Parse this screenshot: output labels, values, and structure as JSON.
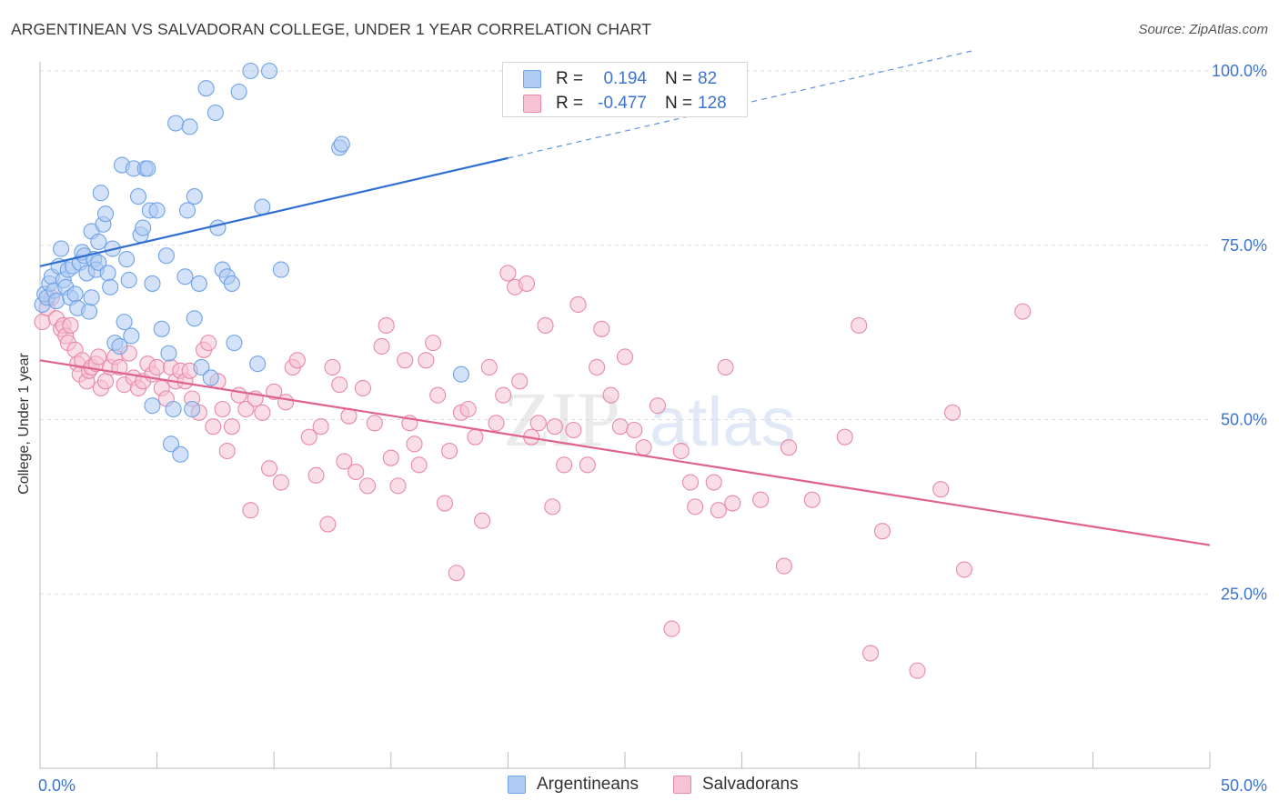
{
  "title": "ARGENTINEAN VS SALVADORAN COLLEGE, UNDER 1 YEAR CORRELATION CHART",
  "source": "Source: ZipAtlas.com",
  "colors": {
    "argentineans": "#6fa3e6",
    "argentineans_fill": "#aecbf2",
    "argentineans_line": "#2f6fd0",
    "salvadorans": "#e889a8",
    "salvadorans_fill": "#f6c3d4",
    "salvadorans_line": "#e0628e",
    "value_text": "#3b74d1",
    "grid": "#dddddd"
  },
  "legend": {
    "rows": [
      {
        "r_label": "R =",
        "r_value": "0.194",
        "n_label": "N =",
        "n_value": "82"
      },
      {
        "r_label": "R =",
        "r_value": "-0.477",
        "n_label": "N =",
        "n_value": "128"
      }
    ]
  },
  "chart_data": {
    "type": "scatter",
    "title": "ARGENTINEAN VS SALVADORAN COLLEGE, UNDER 1 YEAR CORRELATION CHART",
    "xlabel": "",
    "ylabel": "College, Under 1 year",
    "xlim": [
      0,
      50
    ],
    "ylim": [
      0,
      100
    ],
    "x_tick_labels": [
      "0.0%",
      "50.0%"
    ],
    "y_tick_labels": [
      "100.0%",
      "75.0%",
      "50.0%",
      "25.0%"
    ],
    "y_ticks": [
      100,
      75,
      50,
      25
    ],
    "grid": true,
    "legend_position": "top-center",
    "series": [
      {
        "name": "Argentineans",
        "r": 0.194,
        "n": 82,
        "trend": {
          "x0": 0,
          "y0": 72.0,
          "x1": 20,
          "y1": 87.5,
          "dashed_to_x": 40,
          "dashed_to_y": 103.0
        },
        "points": [
          [
            0.1,
            66.5
          ],
          [
            0.2,
            68.0
          ],
          [
            0.3,
            67.5
          ],
          [
            0.4,
            69.5
          ],
          [
            0.5,
            70.5
          ],
          [
            0.6,
            68.5
          ],
          [
            0.7,
            67.0
          ],
          [
            0.8,
            72.0
          ],
          [
            0.9,
            74.5
          ],
          [
            1.0,
            70.0
          ],
          [
            1.1,
            69.0
          ],
          [
            1.2,
            71.5
          ],
          [
            1.3,
            67.5
          ],
          [
            1.4,
            72.0
          ],
          [
            1.5,
            68.0
          ],
          [
            1.6,
            66.0
          ],
          [
            1.7,
            72.5
          ],
          [
            1.8,
            74.0
          ],
          [
            1.9,
            73.5
          ],
          [
            2.0,
            71.0
          ],
          [
            2.1,
            65.5
          ],
          [
            2.2,
            67.5
          ],
          [
            2.3,
            73.0
          ],
          [
            2.4,
            71.5
          ],
          [
            2.5,
            72.5
          ],
          [
            2.2,
            77.0
          ],
          [
            2.5,
            75.5
          ],
          [
            2.6,
            82.5
          ],
          [
            2.7,
            78.0
          ],
          [
            2.8,
            79.5
          ],
          [
            2.9,
            71.0
          ],
          [
            3.0,
            69.0
          ],
          [
            3.1,
            74.5
          ],
          [
            3.2,
            61.0
          ],
          [
            3.4,
            60.5
          ],
          [
            3.5,
            86.5
          ],
          [
            3.6,
            64.0
          ],
          [
            3.7,
            73.0
          ],
          [
            3.8,
            70.0
          ],
          [
            3.9,
            62.0
          ],
          [
            4.0,
            86.0
          ],
          [
            4.2,
            82.0
          ],
          [
            4.3,
            76.5
          ],
          [
            4.4,
            77.5
          ],
          [
            4.5,
            86.0
          ],
          [
            4.6,
            86.0
          ],
          [
            4.7,
            80.0
          ],
          [
            4.8,
            69.5
          ],
          [
            4.8,
            52.0
          ],
          [
            5.0,
            80.0
          ],
          [
            5.2,
            63.0
          ],
          [
            5.4,
            73.5
          ],
          [
            5.5,
            59.5
          ],
          [
            5.6,
            46.5
          ],
          [
            5.7,
            51.5
          ],
          [
            5.8,
            92.5
          ],
          [
            6.0,
            45.0
          ],
          [
            6.2,
            70.5
          ],
          [
            6.3,
            80.0
          ],
          [
            6.4,
            92.0
          ],
          [
            6.5,
            51.5
          ],
          [
            6.6,
            82.0
          ],
          [
            6.6,
            64.5
          ],
          [
            6.8,
            69.5
          ],
          [
            6.9,
            57.5
          ],
          [
            7.1,
            97.5
          ],
          [
            7.3,
            56.0
          ],
          [
            7.5,
            94.0
          ],
          [
            7.6,
            77.5
          ],
          [
            7.8,
            71.5
          ],
          [
            8.0,
            70.5
          ],
          [
            8.2,
            69.5
          ],
          [
            8.3,
            61.0
          ],
          [
            8.5,
            97.0
          ],
          [
            9.0,
            100.0
          ],
          [
            9.3,
            58.0
          ],
          [
            9.5,
            80.5
          ],
          [
            9.8,
            100.0
          ],
          [
            10.3,
            71.5
          ],
          [
            12.8,
            89.0
          ],
          [
            12.9,
            89.5
          ],
          [
            18.0,
            56.5
          ]
        ]
      },
      {
        "name": "Salvadorans",
        "r": -0.477,
        "n": 128,
        "trend": {
          "x0": 0,
          "y0": 58.5,
          "x1": 50,
          "y1": 32.0
        },
        "points": [
          [
            0.1,
            64.0
          ],
          [
            0.3,
            66.0
          ],
          [
            0.5,
            67.5
          ],
          [
            0.7,
            64.5
          ],
          [
            0.9,
            63.0
          ],
          [
            1.0,
            63.5
          ],
          [
            1.1,
            62.0
          ],
          [
            1.2,
            61.0
          ],
          [
            1.3,
            63.5
          ],
          [
            1.5,
            60.0
          ],
          [
            1.6,
            58.0
          ],
          [
            1.7,
            56.5
          ],
          [
            1.8,
            58.5
          ],
          [
            2.0,
            55.5
          ],
          [
            2.1,
            57.0
          ],
          [
            2.2,
            57.5
          ],
          [
            2.4,
            58.0
          ],
          [
            2.5,
            59.0
          ],
          [
            2.6,
            54.5
          ],
          [
            2.8,
            55.5
          ],
          [
            3.0,
            57.5
          ],
          [
            3.2,
            59.0
          ],
          [
            3.4,
            57.5
          ],
          [
            3.6,
            55.0
          ],
          [
            3.8,
            59.5
          ],
          [
            4.0,
            56.0
          ],
          [
            4.2,
            54.5
          ],
          [
            4.4,
            55.5
          ],
          [
            4.6,
            58.0
          ],
          [
            4.8,
            56.5
          ],
          [
            5.0,
            57.5
          ],
          [
            5.2,
            54.5
          ],
          [
            5.4,
            53.0
          ],
          [
            5.6,
            57.5
          ],
          [
            5.8,
            55.5
          ],
          [
            6.0,
            57.0
          ],
          [
            6.2,
            55.5
          ],
          [
            6.4,
            57.0
          ],
          [
            6.5,
            53.0
          ],
          [
            6.8,
            51.0
          ],
          [
            7.0,
            60.0
          ],
          [
            7.2,
            61.0
          ],
          [
            7.4,
            49.0
          ],
          [
            7.6,
            55.5
          ],
          [
            7.8,
            51.5
          ],
          [
            8.0,
            45.5
          ],
          [
            8.2,
            49.0
          ],
          [
            8.5,
            53.5
          ],
          [
            8.8,
            51.5
          ],
          [
            9.0,
            37.0
          ],
          [
            9.2,
            53.0
          ],
          [
            9.5,
            51.0
          ],
          [
            9.8,
            43.0
          ],
          [
            10.0,
            54.0
          ],
          [
            10.3,
            41.0
          ],
          [
            10.5,
            52.5
          ],
          [
            10.8,
            57.5
          ],
          [
            11.0,
            58.5
          ],
          [
            11.5,
            47.5
          ],
          [
            11.8,
            42.0
          ],
          [
            12.0,
            49.0
          ],
          [
            12.3,
            35.0
          ],
          [
            12.5,
            57.5
          ],
          [
            12.8,
            55.0
          ],
          [
            13.0,
            44.0
          ],
          [
            13.2,
            50.5
          ],
          [
            13.5,
            42.5
          ],
          [
            13.8,
            54.5
          ],
          [
            14.0,
            40.5
          ],
          [
            14.3,
            49.5
          ],
          [
            14.6,
            60.5
          ],
          [
            14.8,
            63.5
          ],
          [
            15.0,
            44.5
          ],
          [
            15.3,
            40.5
          ],
          [
            15.6,
            58.5
          ],
          [
            15.8,
            49.5
          ],
          [
            16.0,
            46.5
          ],
          [
            16.2,
            43.5
          ],
          [
            16.5,
            58.5
          ],
          [
            16.8,
            61.0
          ],
          [
            17.0,
            53.5
          ],
          [
            17.3,
            38.0
          ],
          [
            17.5,
            45.5
          ],
          [
            17.8,
            28.0
          ],
          [
            18.0,
            51.0
          ],
          [
            18.3,
            51.5
          ],
          [
            18.6,
            47.5
          ],
          [
            18.9,
            35.5
          ],
          [
            19.2,
            57.5
          ],
          [
            19.5,
            49.5
          ],
          [
            19.8,
            53.5
          ],
          [
            20.0,
            71.0
          ],
          [
            20.3,
            69.0
          ],
          [
            20.5,
            55.5
          ],
          [
            20.8,
            69.5
          ],
          [
            21.0,
            47.5
          ],
          [
            21.3,
            49.5
          ],
          [
            21.6,
            63.5
          ],
          [
            21.9,
            37.5
          ],
          [
            22.0,
            49.0
          ],
          [
            22.4,
            43.5
          ],
          [
            22.8,
            48.5
          ],
          [
            23.0,
            66.5
          ],
          [
            23.4,
            43.5
          ],
          [
            23.8,
            57.5
          ],
          [
            24.0,
            63.0
          ],
          [
            24.4,
            53.5
          ],
          [
            24.8,
            49.0
          ],
          [
            25.0,
            59.0
          ],
          [
            25.4,
            48.5
          ],
          [
            25.8,
            46.0
          ],
          [
            26.4,
            52.0
          ],
          [
            27.0,
            20.0
          ],
          [
            27.4,
            45.5
          ],
          [
            27.8,
            41.0
          ],
          [
            28.0,
            37.5
          ],
          [
            28.8,
            41.0
          ],
          [
            29.0,
            37.0
          ],
          [
            29.3,
            57.5
          ],
          [
            29.6,
            38.0
          ],
          [
            30.8,
            38.5
          ],
          [
            31.8,
            29.0
          ],
          [
            32.0,
            46.0
          ],
          [
            33.0,
            38.5
          ],
          [
            34.4,
            47.5
          ],
          [
            35.0,
            63.5
          ],
          [
            35.5,
            16.5
          ],
          [
            36.0,
            34.0
          ],
          [
            37.5,
            14.0
          ],
          [
            38.5,
            40.0
          ],
          [
            39.0,
            51.0
          ],
          [
            39.5,
            28.5
          ],
          [
            42.0,
            65.5
          ]
        ]
      }
    ]
  },
  "bottom_legend": {
    "items": [
      {
        "label": "Argentineans"
      },
      {
        "label": "Salvadorans"
      }
    ]
  },
  "watermark": {
    "part1": "ZIP",
    "part2": "atlas"
  }
}
